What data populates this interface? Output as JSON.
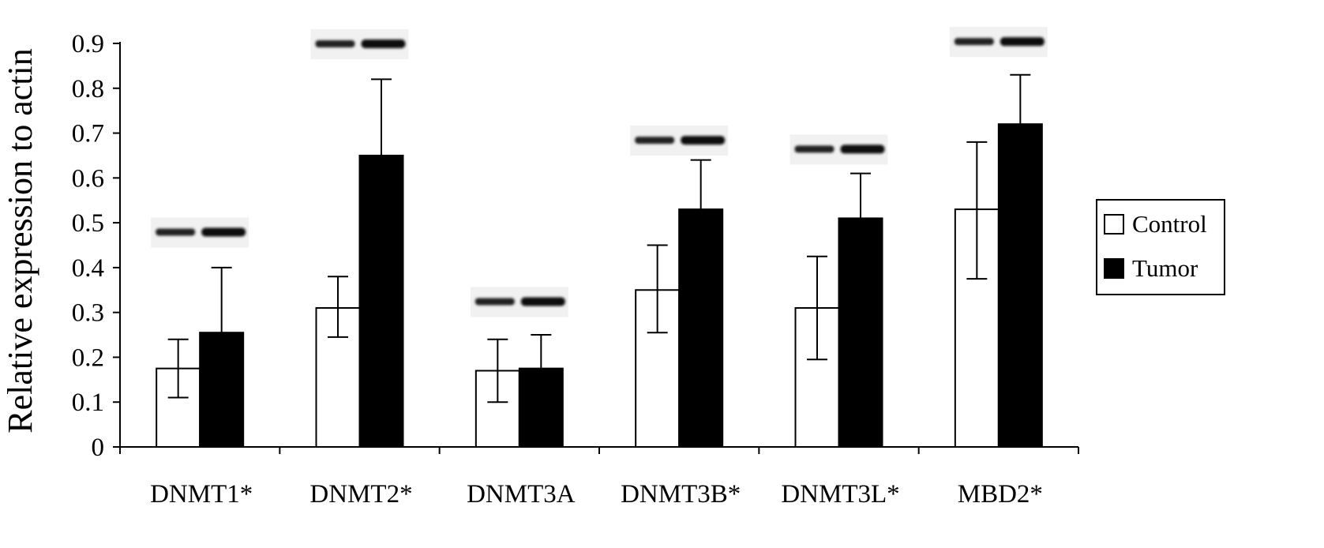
{
  "chart_data": {
    "type": "bar",
    "title": "",
    "xlabel": "",
    "ylabel": "Relative expression to actin",
    "ylim": [
      0,
      0.9
    ],
    "yticks": [
      0,
      0.1,
      0.2,
      0.3,
      0.4,
      0.5,
      0.6,
      0.7,
      0.8,
      0.9
    ],
    "ytick_labels": [
      "0",
      "0.1",
      "0.2",
      "0.3",
      "0.4",
      "0.5",
      "0.6",
      "0.7",
      "0.8",
      "0.9"
    ],
    "grid": false,
    "legend_position": "right",
    "categories": [
      "DNMT1*",
      "DNMT2*",
      "DNMT3A",
      "DNMT3B*",
      "DNMT3L*",
      "MBD2*"
    ],
    "series": [
      {
        "name": "Control",
        "color": "#ffffff",
        "values": [
          0.175,
          0.31,
          0.17,
          0.35,
          0.31,
          0.53
        ],
        "error_low": [
          0.11,
          0.245,
          0.1,
          0.255,
          0.195,
          0.375
        ],
        "error_high": [
          0.24,
          0.38,
          0.24,
          0.45,
          0.425,
          0.68
        ]
      },
      {
        "name": "Tumor",
        "color": "#000000",
        "values": [
          0.255,
          0.65,
          0.175,
          0.53,
          0.51,
          0.72
        ],
        "error_low": [
          0.255,
          0.65,
          0.175,
          0.53,
          0.51,
          0.72
        ],
        "error_high": [
          0.4,
          0.82,
          0.25,
          0.64,
          0.61,
          0.83
        ]
      }
    ],
    "blot_bands": [
      {
        "category": "DNMT1*",
        "level": 0.48
      },
      {
        "category": "DNMT2*",
        "level": 0.9
      },
      {
        "category": "DNMT3A",
        "level": 0.325
      },
      {
        "category": "DNMT3B*",
        "level": 0.685
      },
      {
        "category": "DNMT3L*",
        "level": 0.665
      },
      {
        "category": "MBD2*",
        "level": 0.905
      }
    ]
  }
}
